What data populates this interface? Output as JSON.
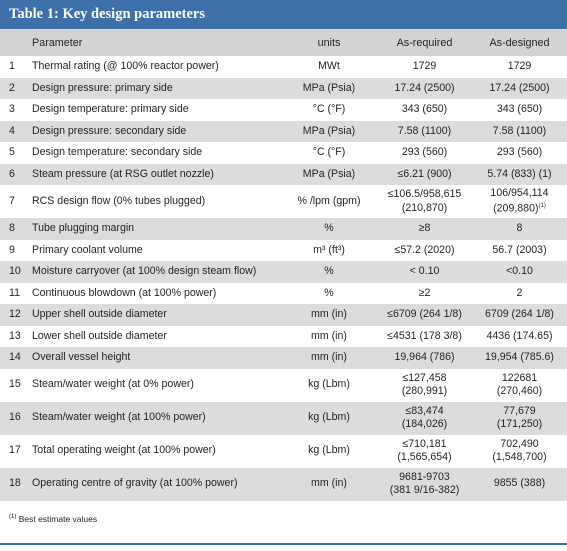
{
  "title": "Table 1: Key design parameters",
  "columns": {
    "num": "",
    "parameter": "Parameter",
    "units": "units",
    "as_required": "As-required",
    "as_designed": "As-designed"
  },
  "rows": [
    {
      "num": "1",
      "parameter": "Thermal rating (@ 100% reactor power)",
      "units": "MWt",
      "as_required": "1729",
      "as_designed": "1729"
    },
    {
      "num": "2",
      "parameter": "Design pressure: primary side",
      "units": "MPa (Psia)",
      "as_required": "17.24 (2500)",
      "as_designed": "17.24 (2500)"
    },
    {
      "num": "3",
      "parameter": "Design temperature: primary side",
      "units": "°C (°F)",
      "as_required": "343 (650)",
      "as_designed": "343 (650)"
    },
    {
      "num": "4",
      "parameter": "Design pressure: secondary side",
      "units": "MPa (Psia)",
      "as_required": "7.58 (1100)",
      "as_designed": "7.58 (1100)"
    },
    {
      "num": "5",
      "parameter": "Design temperature: secondary side",
      "units": "°C (°F)",
      "as_required": "293 (560)",
      "as_designed": "293 (560)"
    },
    {
      "num": "6",
      "parameter": "Steam pressure (at RSG outlet nozzle)",
      "units": "MPa (Psia)",
      "as_required": "≤6.21 (900)",
      "as_designed": "5.74 (833) (1)"
    },
    {
      "num": "7",
      "parameter": "RCS design flow (0% tubes plugged)",
      "units": "% /lpm (gpm)",
      "as_required": "≤106.5/958,615",
      "as_required_2": "(210,870)",
      "as_designed": "106/954,114",
      "as_designed_2": "(209,880)",
      "as_designed_sup": "(1)"
    },
    {
      "num": "8",
      "parameter": "Tube plugging margin",
      "units": "%",
      "as_required": "≥8",
      "as_designed": "8"
    },
    {
      "num": "9",
      "parameter": "Primary coolant volume",
      "units": "m³ (ft³)",
      "as_required": "≤57.2 (2020)",
      "as_designed": "56.7 (2003)"
    },
    {
      "num": "10",
      "parameter": "Moisture carryover (at 100% design steam flow)",
      "units": "%",
      "as_required": "< 0.10",
      "as_designed": "<0.10"
    },
    {
      "num": "11",
      "parameter": "Continuous blowdown (at 100% power)",
      "units": "%",
      "as_required": "≥2",
      "as_designed": "2"
    },
    {
      "num": "12",
      "parameter": "Upper shell outside diameter",
      "units": "mm (in)",
      "as_required": "≤6709 (264 1/8)",
      "as_designed": "6709 (264 1/8)"
    },
    {
      "num": "13",
      "parameter": "Lower shell outside diameter",
      "units": "mm (in)",
      "as_required": "≤4531 (178 3/8)",
      "as_designed": "4436 (174.65)"
    },
    {
      "num": "14",
      "parameter": "Overall vessel height",
      "units": "mm (in)",
      "as_required": "19,964 (786)",
      "as_designed": "19,954 (785.6)"
    },
    {
      "num": "15",
      "parameter": "Steam/water weight (at 0% power)",
      "units": "kg (Lbm)",
      "as_required": "≤127,458",
      "as_required_2": "(280,991)",
      "as_designed": "122681",
      "as_designed_2": "(270,460)"
    },
    {
      "num": "16",
      "parameter": "Steam/water weight (at 100% power)",
      "units": "kg (Lbm)",
      "as_required": "≤83,474",
      "as_required_2": "(184,026)",
      "as_designed": "77,679",
      "as_designed_2": "(171,250)"
    },
    {
      "num": "17",
      "parameter": "Total operating weight (at 100% power)",
      "units": "kg (Lbm)",
      "as_required": "≤710,181",
      "as_required_2": "(1,565,654)",
      "as_designed": "702,490",
      "as_designed_2": "(1,548,700)"
    },
    {
      "num": "18",
      "parameter": "Operating centre of gravity (at 100% power)",
      "units": "mm (in)",
      "as_required": "9681-9703",
      "as_required_2": "(381 9/16-382)",
      "as_designed": "9855 (388)"
    }
  ],
  "footnote": {
    "marker": "(1)",
    "text": " Best estimate values"
  },
  "colors": {
    "title_bar": "#3d6fa8",
    "header_row": "#d3d3d4",
    "shaded_row": "#dcdcde"
  }
}
